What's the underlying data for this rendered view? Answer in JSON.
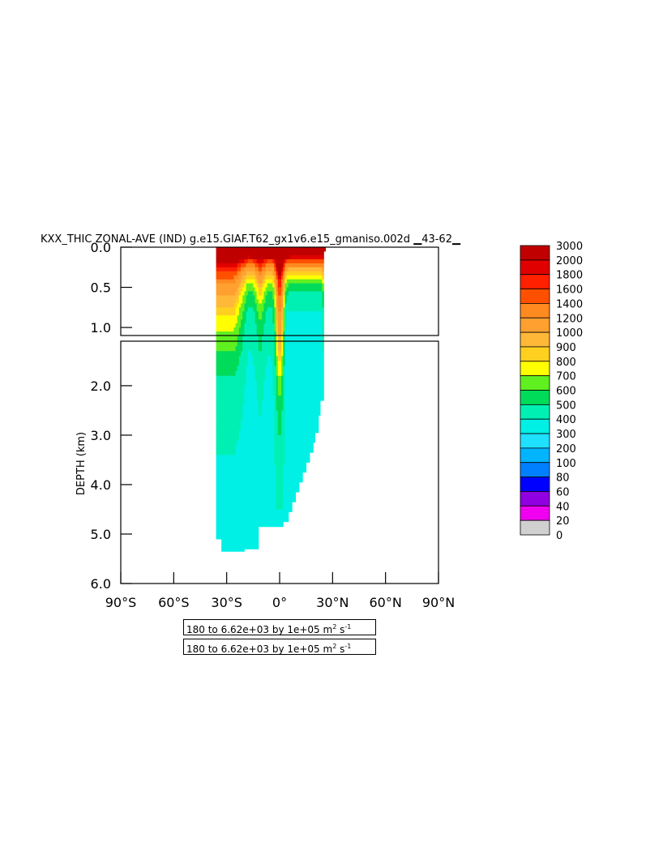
{
  "chart_data": {
    "type": "heatmap",
    "title": "KXX_THIC ZONAL-AVE (IND) g.e15.GIAF.T62_gx1v6.e15_gmaniso.002d ▁43-62▁",
    "ylabel": "DEPTH (km)",
    "xlabel": "",
    "xlim": [
      -90,
      90
    ],
    "ylim": [
      6.0,
      0.0
    ],
    "y_upper_panel_range": [
      0.0,
      1.1
    ],
    "y_lower_panel_range": [
      1.1,
      6.0
    ],
    "x_ticks": [
      "90°S",
      "60°S",
      "30°S",
      "0°",
      "30°N",
      "60°N",
      "90°N"
    ],
    "y_ticks_upper": [
      "0.0",
      "0.5",
      "1.0"
    ],
    "y_ticks_lower": [
      "2.0",
      "3.0",
      "4.0",
      "5.0",
      "6.0"
    ],
    "colorbar_labels": [
      "3000",
      "2000",
      "1800",
      "1600",
      "1400",
      "1200",
      "1000",
      "900",
      "800",
      "700",
      "600",
      "500",
      "400",
      "300",
      "200",
      "100",
      "80",
      "60",
      "40",
      "20",
      "0"
    ],
    "colorbar_colors": [
      "#c00000",
      "#e00000",
      "#ff2000",
      "#ff5000",
      "#ff8a20",
      "#ffa030",
      "#ffb838",
      "#ffd020",
      "#ffff00",
      "#60f020",
      "#00dc5a",
      "#00f0b4",
      "#00f0e6",
      "#20e0ff",
      "#00b4ff",
      "#0080ff",
      "#0000ff",
      "#9000e0",
      "#f000f0",
      "#d0d0d0",
      "#707070"
    ],
    "info_line_1": "180 to 6.62e+03 by 1e+05 m",
    "info_line_2": "180 to 6.62e+03 by 1e+05 m",
    "info_units_exp": "2",
    "info_units_s": " s",
    "info_units_s_exp": "-1"
  }
}
